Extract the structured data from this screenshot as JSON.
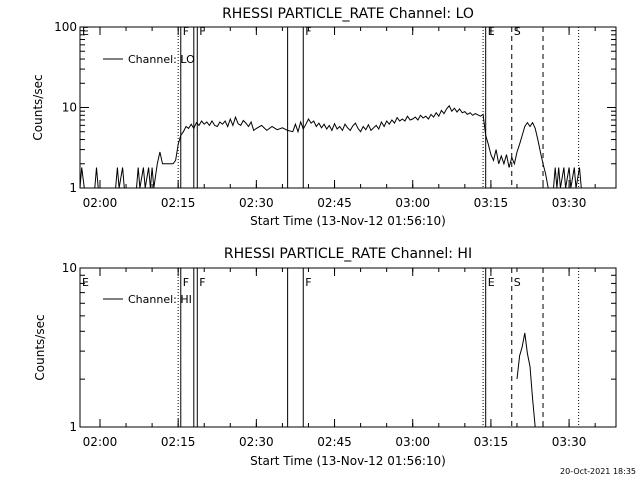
{
  "chart_data": [
    {
      "type": "line",
      "title": "RHESSI PARTICLE_RATE Channel: LO",
      "xlabel": "Start Time (13-Nov-12 01:56:10)",
      "ylabel": "Counts/sec",
      "y_scale": "log",
      "ylim": [
        1,
        100
      ],
      "y_ticks": [
        {
          "v": 1,
          "label": "1"
        },
        {
          "v": 10,
          "label": "10"
        },
        {
          "v": 100,
          "label": "100"
        }
      ],
      "xlim": [
        "01:56:10",
        "03:39:00"
      ],
      "x_ticks": [
        "02:00",
        "02:15",
        "02:30",
        "02:45",
        "03:00",
        "03:15",
        "03:30"
      ],
      "legend": "Channel: LO",
      "legend_position": "top-left",
      "series": [
        {
          "name": "Channel: LO",
          "points": [
            [
              "01:56:10",
              1.0
            ],
            [
              "01:56:30",
              1.8
            ],
            [
              "01:57:00",
              1.0
            ],
            [
              "01:59:00",
              1.0
            ],
            [
              "01:59:20",
              1.8
            ],
            [
              "01:59:40",
              1.0
            ],
            [
              "02:03:00",
              1.0
            ],
            [
              "02:03:20",
              1.8
            ],
            [
              "02:03:40",
              1.0
            ],
            [
              "02:04:20",
              1.8
            ],
            [
              "02:04:40",
              1.0
            ],
            [
              "02:07:00",
              1.0
            ],
            [
              "02:07:20",
              1.8
            ],
            [
              "02:07:40",
              1.0
            ],
            [
              "02:08:20",
              1.8
            ],
            [
              "02:08:40",
              1.0
            ],
            [
              "02:09:20",
              1.8
            ],
            [
              "02:09:40",
              1.0
            ],
            [
              "02:10:00",
              1.8
            ],
            [
              "02:10:20",
              1.0
            ],
            [
              "02:11:00",
              2.0
            ],
            [
              "02:11:30",
              2.8
            ],
            [
              "02:12:00",
              2.0
            ],
            [
              "02:14:00",
              2.0
            ],
            [
              "02:14:30",
              2.2
            ],
            [
              "02:15:00",
              3.5
            ],
            [
              "02:15:30",
              4.5
            ],
            [
              "02:16:00",
              5.0
            ],
            [
              "02:16:30",
              5.8
            ],
            [
              "02:17:00",
              5.5
            ],
            [
              "02:17:30",
              6.2
            ],
            [
              "02:18:00",
              5.5
            ],
            [
              "02:18:30",
              6.5
            ],
            [
              "02:19:00",
              6.0
            ],
            [
              "02:19:30",
              6.8
            ],
            [
              "02:20:00",
              6.2
            ],
            [
              "02:20:30",
              6.6
            ],
            [
              "02:21:00",
              6.0
            ],
            [
              "02:21:30",
              6.8
            ],
            [
              "02:22:00",
              6.0
            ],
            [
              "02:22:30",
              5.8
            ],
            [
              "02:23:00",
              6.6
            ],
            [
              "02:23:30",
              6.2
            ],
            [
              "02:24:00",
              6.8
            ],
            [
              "02:24:30",
              5.8
            ],
            [
              "02:25:00",
              7.2
            ],
            [
              "02:25:30",
              6.0
            ],
            [
              "02:26:00",
              7.6
            ],
            [
              "02:26:30",
              6.3
            ],
            [
              "02:27:00",
              6.0
            ],
            [
              "02:27:30",
              6.9
            ],
            [
              "02:28:00",
              6.4
            ],
            [
              "02:28:30",
              5.8
            ],
            [
              "02:29:00",
              6.6
            ],
            [
              "02:29:30",
              5.2
            ],
            [
              "02:30:00",
              5.5
            ],
            [
              "02:31:00",
              6.0
            ],
            [
              "02:32:00",
              5.2
            ],
            [
              "02:33:00",
              5.8
            ],
            [
              "02:34:00",
              5.3
            ],
            [
              "02:35:00",
              5.6
            ],
            [
              "02:36:00",
              5.2
            ],
            [
              "02:37:00",
              5.0
            ],
            [
              "02:37:30",
              6.2
            ],
            [
              "02:38:00",
              5.0
            ],
            [
              "02:38:30",
              6.6
            ],
            [
              "02:39:00",
              5.4
            ],
            [
              "02:39:30",
              6.2
            ],
            [
              "02:40:00",
              7.2
            ],
            [
              "02:40:30",
              6.4
            ],
            [
              "02:41:00",
              6.8
            ],
            [
              "02:41:30",
              5.8
            ],
            [
              "02:42:00",
              6.4
            ],
            [
              "02:42:30",
              5.6
            ],
            [
              "02:43:00",
              6.2
            ],
            [
              "02:43:30",
              5.4
            ],
            [
              "02:44:00",
              6.0
            ],
            [
              "02:44:30",
              5.2
            ],
            [
              "02:45:00",
              6.3
            ],
            [
              "02:45:30",
              5.4
            ],
            [
              "02:46:00",
              5.8
            ],
            [
              "02:46:30",
              5.2
            ],
            [
              "02:47:00",
              6.2
            ],
            [
              "02:47:30",
              5.6
            ],
            [
              "02:48:00",
              5.2
            ],
            [
              "02:48:30",
              5.9
            ],
            [
              "02:49:00",
              6.4
            ],
            [
              "02:49:30",
              5.5
            ],
            [
              "02:50:00",
              5.0
            ],
            [
              "02:50:30",
              5.8
            ],
            [
              "02:51:00",
              5.3
            ],
            [
              "02:51:30",
              6.1
            ],
            [
              "02:52:00",
              5.2
            ],
            [
              "02:52:30",
              5.6
            ],
            [
              "02:53:00",
              6.0
            ],
            [
              "02:53:30",
              5.4
            ],
            [
              "02:54:00",
              6.6
            ],
            [
              "02:54:30",
              5.8
            ],
            [
              "02:55:00",
              6.8
            ],
            [
              "02:55:30",
              6.2
            ],
            [
              "02:56:00",
              7.0
            ],
            [
              "02:56:30",
              6.4
            ],
            [
              "02:57:00",
              7.5
            ],
            [
              "02:57:30",
              6.8
            ],
            [
              "02:58:00",
              7.2
            ],
            [
              "02:58:30",
              6.8
            ],
            [
              "02:59:00",
              7.8
            ],
            [
              "02:59:30",
              7.0
            ],
            [
              "03:00:00",
              7.2
            ],
            [
              "03:00:30",
              7.6
            ],
            [
              "03:01:00",
              7.0
            ],
            [
              "03:01:30",
              8.0
            ],
            [
              "03:02:00",
              7.4
            ],
            [
              "03:02:30",
              7.8
            ],
            [
              "03:03:00",
              7.2
            ],
            [
              "03:03:30",
              8.2
            ],
            [
              "03:04:00",
              7.6
            ],
            [
              "03:04:30",
              8.6
            ],
            [
              "03:05:00",
              7.8
            ],
            [
              "03:05:30",
              9.2
            ],
            [
              "03:06:00",
              8.4
            ],
            [
              "03:06:30",
              9.6
            ],
            [
              "03:07:00",
              10.5
            ],
            [
              "03:07:30",
              9.0
            ],
            [
              "03:08:00",
              9.8
            ],
            [
              "03:08:30",
              8.8
            ],
            [
              "03:09:00",
              9.6
            ],
            [
              "03:09:30",
              8.6
            ],
            [
              "03:10:00",
              8.9
            ],
            [
              "03:10:30",
              8.2
            ],
            [
              "03:11:00",
              8.6
            ],
            [
              "03:11:30",
              8.0
            ],
            [
              "03:12:00",
              8.4
            ],
            [
              "03:13:00",
              7.8
            ],
            [
              "03:13:30",
              8.2
            ],
            [
              "03:14:00",
              4.5
            ],
            [
              "03:14:30",
              3.5
            ],
            [
              "03:15:00",
              2.6
            ],
            [
              "03:15:30",
              2.2
            ],
            [
              "03:16:00",
              3.0
            ],
            [
              "03:16:30",
              2.0
            ],
            [
              "03:17:00",
              2.5
            ],
            [
              "03:17:30",
              2.0
            ],
            [
              "03:18:00",
              2.6
            ],
            [
              "03:18:30",
              1.8
            ],
            [
              "03:19:00",
              2.4
            ],
            [
              "03:19:30",
              2.0
            ],
            [
              "03:20:00",
              2.8
            ],
            [
              "03:20:30",
              3.5
            ],
            [
              "03:21:00",
              4.5
            ],
            [
              "03:21:30",
              5.8
            ],
            [
              "03:22:00",
              6.5
            ],
            [
              "03:22:30",
              5.8
            ],
            [
              "03:23:00",
              6.5
            ],
            [
              "03:23:30",
              5.5
            ],
            [
              "03:24:00",
              4.0
            ],
            [
              "03:24:30",
              2.8
            ],
            [
              "03:25:00",
              2.0
            ],
            [
              "03:25:30",
              1.5
            ],
            [
              "03:26:00",
              1.0
            ],
            [
              "03:27:00",
              1.0
            ],
            [
              "03:27:20",
              1.8
            ],
            [
              "03:27:40",
              1.0
            ],
            [
              "03:28:00",
              1.8
            ],
            [
              "03:28:20",
              1.0
            ],
            [
              "03:29:00",
              1.8
            ],
            [
              "03:29:20",
              1.0
            ],
            [
              "03:30:00",
              1.8
            ],
            [
              "03:30:20",
              1.0
            ],
            [
              "03:31:00",
              1.8
            ],
            [
              "03:31:20",
              1.0
            ],
            [
              "03:32:00",
              1.8
            ],
            [
              "03:32:20",
              1.0
            ]
          ]
        }
      ]
    },
    {
      "type": "line",
      "title": "RHESSI PARTICLE_RATE Channel: HI",
      "xlabel": "Start Time (13-Nov-12 01:56:10)",
      "ylabel": "Counts/sec",
      "y_scale": "log",
      "ylim": [
        1,
        10
      ],
      "y_ticks": [
        {
          "v": 1,
          "label": "1"
        },
        {
          "v": 10,
          "label": "10"
        }
      ],
      "xlim": [
        "01:56:10",
        "03:39:00"
      ],
      "x_ticks": [
        "02:00",
        "02:15",
        "02:30",
        "02:45",
        "03:00",
        "03:15",
        "03:30"
      ],
      "legend": "Channel: HI",
      "legend_position": "top-left",
      "series": [
        {
          "name": "Channel: HI",
          "points": [
            [
              "03:20:00",
              2.0
            ],
            [
              "03:20:30",
              2.8
            ],
            [
              "03:21:00",
              3.2
            ],
            [
              "03:21:30",
              3.9
            ],
            [
              "03:22:00",
              2.9
            ],
            [
              "03:22:30",
              2.4
            ],
            [
              "03:23:00",
              1.5
            ],
            [
              "03:23:30",
              1.0
            ]
          ]
        }
      ]
    }
  ],
  "markers": [
    {
      "time": "01:56:10",
      "label": "E",
      "style": "solid"
    },
    {
      "time": "02:15:00",
      "label": "",
      "style": "dotted"
    },
    {
      "time": "02:15:30",
      "label": "F",
      "style": "solid"
    },
    {
      "time": "02:18:00",
      "label": "",
      "style": "solid"
    },
    {
      "time": "02:18:40",
      "label": "F",
      "style": "solid"
    },
    {
      "time": "02:36:00",
      "label": "",
      "style": "solid"
    },
    {
      "time": "02:39:00",
      "label": "F",
      "style": "solid"
    },
    {
      "time": "03:13:30",
      "label": "",
      "style": "dotted"
    },
    {
      "time": "03:14:00",
      "label": "E",
      "style": "solid"
    },
    {
      "time": "03:19:00",
      "label": "S",
      "style": "dashed"
    },
    {
      "time": "03:25:00",
      "label": "",
      "style": "dashed"
    },
    {
      "time": "03:31:50",
      "label": "",
      "style": "dotted"
    }
  ],
  "stamp": "20-Oct-2021 18:35"
}
